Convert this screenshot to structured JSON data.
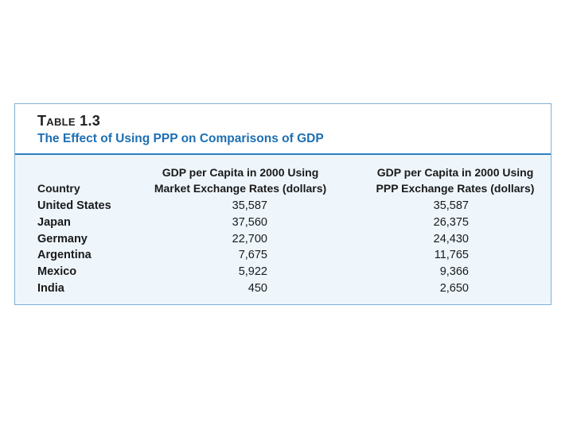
{
  "table": {
    "label": "Table 1.3",
    "title": "The Effect of Using PPP on Comparisons of GDP",
    "columns": {
      "country": "Country",
      "market_line1": "GDP per Capita in 2000 Using",
      "market_line2": "Market Exchange Rates (dollars)",
      "ppp_line1": "GDP per Capita in 2000 Using",
      "ppp_line2": "PPP Exchange Rates (dollars)"
    },
    "rows": [
      {
        "country": "United States",
        "market": "35,587",
        "ppp": "35,587"
      },
      {
        "country": "Japan",
        "market": "37,560",
        "ppp": "26,375"
      },
      {
        "country": "Germany",
        "market": "22,700",
        "ppp": "24,430"
      },
      {
        "country": "Argentina",
        "market": "7,675",
        "ppp": "11,765"
      },
      {
        "country": "Mexico",
        "market": "5,922",
        "ppp": "9,366"
      },
      {
        "country": "India",
        "market": "450",
        "ppp": "2,650"
      }
    ]
  }
}
